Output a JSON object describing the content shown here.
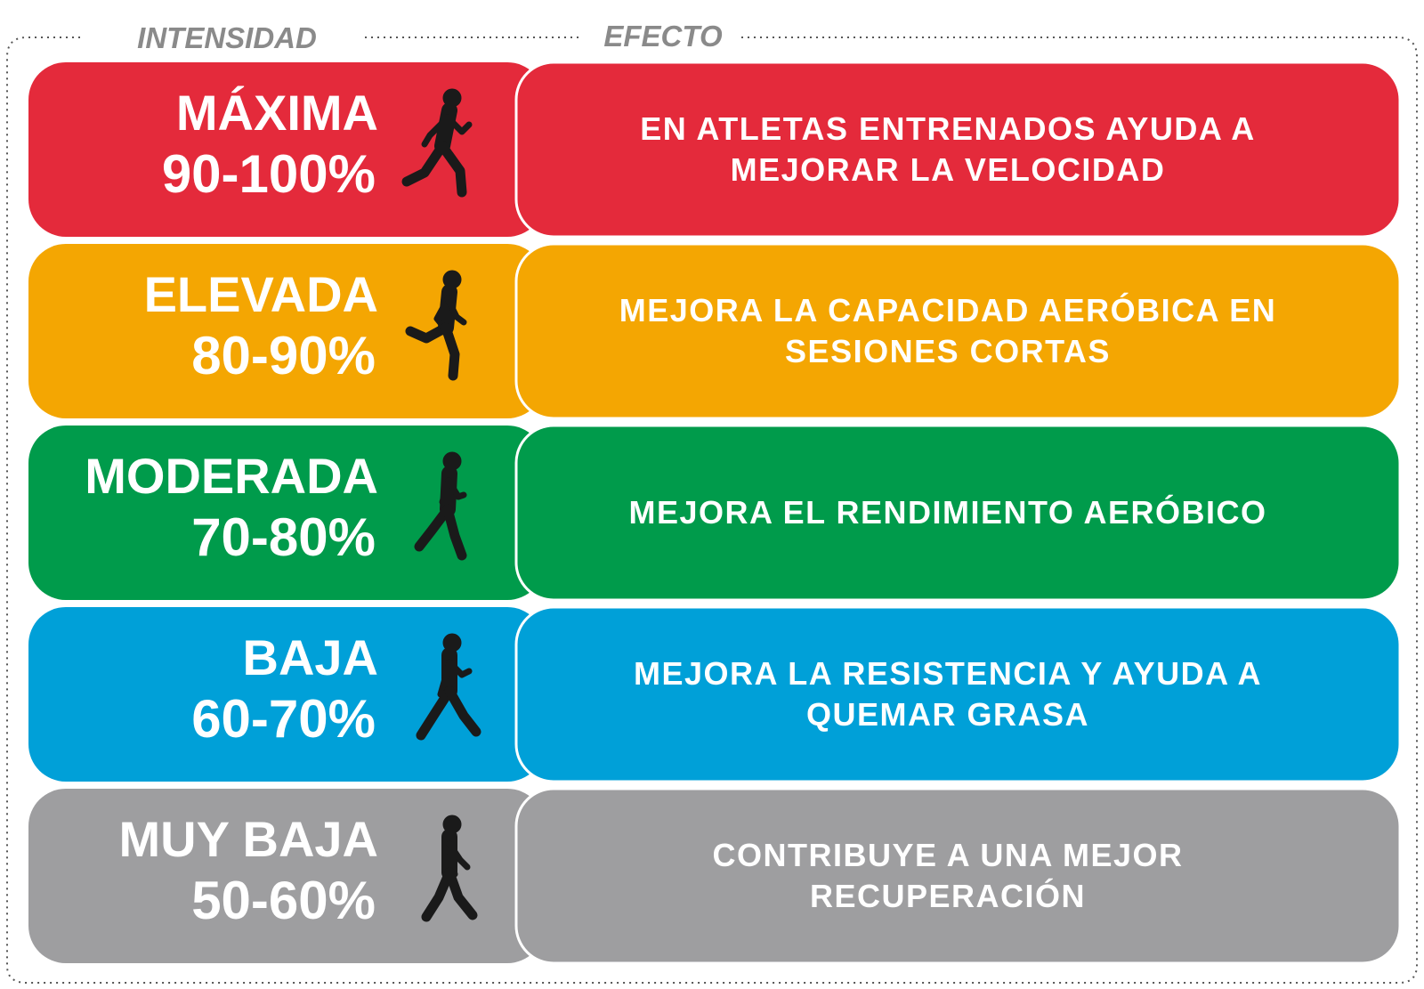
{
  "header": {
    "intensity": "INTENSIDAD",
    "effect": "EFECTO"
  },
  "rows": [
    {
      "level": "MÁXIMA",
      "range": "90-100%",
      "effect": [
        "EN ATLETAS ENTRENADOS AYUDA A",
        "MEJORAR LA VELOCIDAD"
      ]
    },
    {
      "level": "ELEVADA",
      "range": "80-90%",
      "effect": [
        "MEJORA LA CAPACIDAD AERÓBICA EN",
        "SESIONES CORTAS"
      ]
    },
    {
      "level": "MODERADA",
      "range": "70-80%",
      "effect": [
        "MEJORA EL RENDIMIENTO AERÓBICO"
      ]
    },
    {
      "level": "BAJA",
      "range": "60-70%",
      "effect": [
        "MEJORA LA RESISTENCIA Y AYUDA A",
        "QUEMAR GRASA"
      ]
    },
    {
      "level": "MUY BAJA",
      "range": "50-60%",
      "effect": [
        "CONTRIBUYE A UNA MEJOR",
        "RECUPERACIÓN"
      ]
    }
  ]
}
